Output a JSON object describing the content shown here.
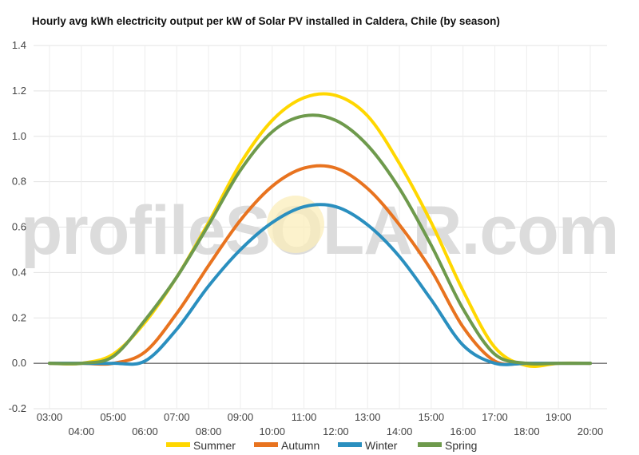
{
  "chart_data": {
    "type": "line",
    "title": "Hourly avg kWh electricity output per kW of Solar PV installed in Caldera, Chile (by season)",
    "watermark": "profileSOLAR.com",
    "xlabel": "",
    "ylabel": "",
    "ylim": [
      -0.2,
      1.4
    ],
    "yticks": [
      "-0.2",
      "0.0",
      "0.2",
      "0.4",
      "0.6",
      "0.8",
      "1.0",
      "1.2",
      "1.4"
    ],
    "xticks_upper": [
      "03:00",
      "05:00",
      "07:00",
      "09:00",
      "11:00",
      "13:00",
      "15:00",
      "17:00",
      "19:00"
    ],
    "xticks_lower": [
      "04:00",
      "06:00",
      "08:00",
      "10:00",
      "12:00",
      "14:00",
      "16:00",
      "18:00",
      "20:00"
    ],
    "x": [
      "03:00",
      "04:00",
      "05:00",
      "06:00",
      "07:00",
      "08:00",
      "09:00",
      "10:00",
      "11:00",
      "12:00",
      "13:00",
      "14:00",
      "15:00",
      "16:00",
      "17:00",
      "18:00",
      "19:00",
      "20:00"
    ],
    "grid": true,
    "legend_position": "bottom",
    "series": [
      {
        "name": "Summer",
        "color": "#FFD700",
        "values": [
          0,
          0,
          0.04,
          0.18,
          0.38,
          0.62,
          0.88,
          1.07,
          1.17,
          1.18,
          1.09,
          0.88,
          0.62,
          0.32,
          0.07,
          -0.01,
          0,
          0
        ]
      },
      {
        "name": "Autumn",
        "color": "#E8731F",
        "values": [
          0,
          0,
          0,
          0.05,
          0.22,
          0.43,
          0.63,
          0.78,
          0.86,
          0.86,
          0.77,
          0.61,
          0.41,
          0.16,
          0.01,
          0,
          0,
          0
        ]
      },
      {
        "name": "Winter",
        "color": "#2A8FBF",
        "values": [
          0,
          0,
          0,
          0.01,
          0.15,
          0.34,
          0.5,
          0.62,
          0.69,
          0.69,
          0.61,
          0.47,
          0.28,
          0.08,
          0,
          0,
          0,
          0
        ]
      },
      {
        "name": "Spring",
        "color": "#6E9A4C",
        "values": [
          0,
          0,
          0.03,
          0.19,
          0.38,
          0.61,
          0.85,
          1.02,
          1.09,
          1.07,
          0.96,
          0.77,
          0.52,
          0.24,
          0.04,
          0,
          0,
          0
        ]
      }
    ]
  }
}
